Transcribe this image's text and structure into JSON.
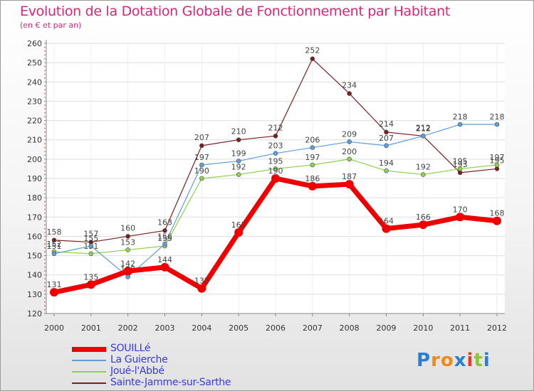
{
  "chart_data": {
    "type": "line",
    "title": "Evolution de la Dotation Globale de Fonctionnement par Habitant",
    "subtitle": "(en € et par an)",
    "xlabel": "",
    "ylabel": "",
    "ylim": [
      120,
      260
    ],
    "yticks": [
      120,
      130,
      140,
      150,
      160,
      170,
      180,
      190,
      200,
      210,
      220,
      230,
      240,
      250,
      260
    ],
    "categories": [
      "2000",
      "2001",
      "2002",
      "2003",
      "2004",
      "2005",
      "2006",
      "2007",
      "2008",
      "2009",
      "2010",
      "2011",
      "2012"
    ],
    "series": [
      {
        "name": "SOUILLé",
        "color": "#ee0000",
        "values": [
          131,
          135,
          142,
          144,
          133,
          162,
          190,
          186,
          187,
          164,
          166,
          170,
          168
        ]
      },
      {
        "name": "La Guierche",
        "color": "#5f9ed8",
        "values": [
          151,
          155,
          139,
          156,
          197,
          199,
          203,
          206,
          209,
          207,
          212,
          218,
          218
        ]
      },
      {
        "name": "Joué-l'Abbé",
        "color": "#8fd04e",
        "values": [
          152,
          151,
          153,
          155,
          190,
          192,
          195,
          197,
          200,
          194,
          192,
          195,
          197
        ]
      },
      {
        "name": "Sainte-Jamme-sur-Sarthe",
        "color": "#7a1f1f",
        "values": [
          158,
          157,
          160,
          163,
          207,
          210,
          212,
          252,
          234,
          214,
          212,
          193,
          195
        ]
      }
    ],
    "legend_position": "bottom-left",
    "grid": true
  },
  "label_sets": {
    "SOUILLé": [
      "131",
      "135",
      "142",
      "144",
      "133",
      "162",
      "190",
      "186",
      "187",
      "164",
      "166",
      "170",
      "168"
    ],
    "La Guierche": [
      "151",
      "155",
      "139",
      "156",
      "197",
      "199",
      "203",
      "206",
      "209",
      "207",
      "212",
      "218",
      "218"
    ],
    "Joué-l'Abbé": [
      "152",
      "151",
      "153",
      "155",
      "190",
      "192",
      "195",
      "197",
      "200",
      "194",
      "192",
      "195",
      "197"
    ],
    "Sainte-Jamme-sur-Sarthe": [
      "158",
      "157",
      "160",
      "163",
      "207",
      "210",
      "212",
      "252",
      "234",
      "214",
      "212",
      "193",
      "195"
    ]
  },
  "logo": {
    "text": "Proxiti",
    "letters": [
      "P",
      "r",
      "o",
      "x",
      "i",
      "t",
      "i"
    ],
    "colors": [
      "#2a7fd0",
      "#f08a1c",
      "#f08a1c",
      "#2a7fd0",
      "#e83a2a",
      "#8cc63e",
      "#2a7fd0"
    ]
  }
}
